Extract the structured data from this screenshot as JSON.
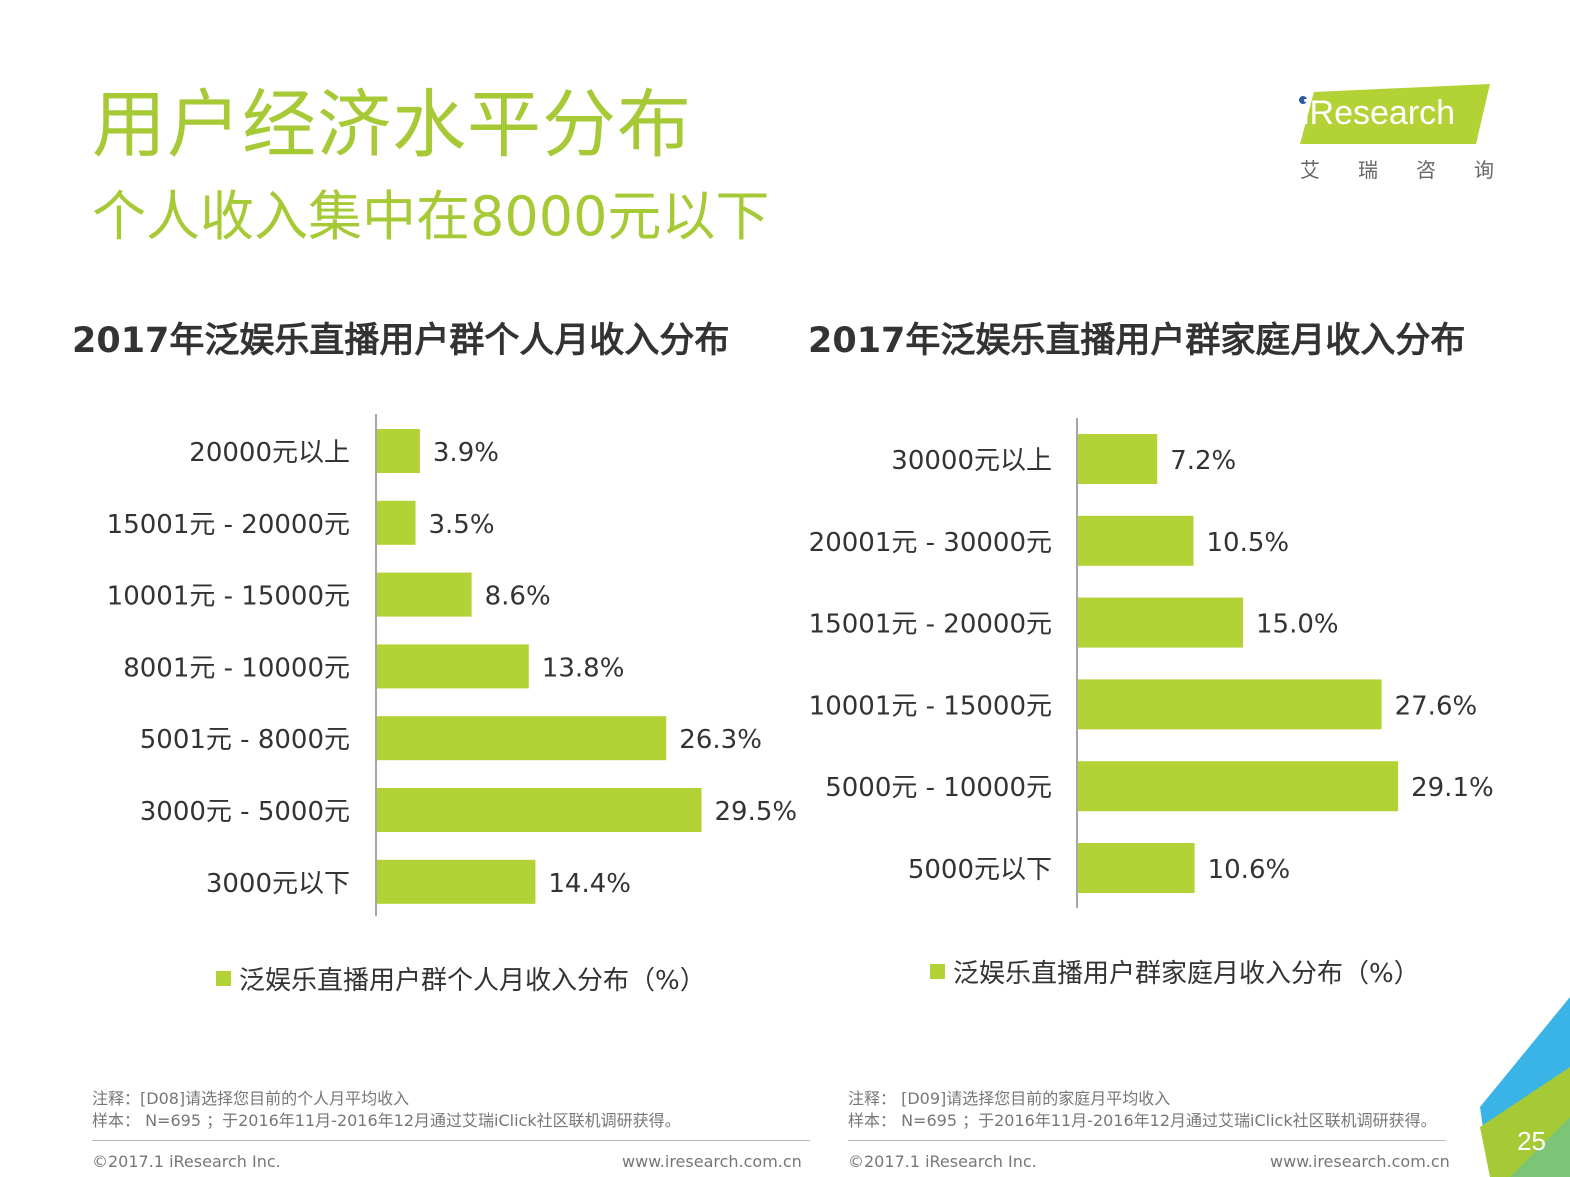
{
  "page": {
    "title": "用户经济水平分布",
    "subtitle": "个人收入集中在8000元以下",
    "page_number": "25"
  },
  "logo": {
    "brand": "iResearch",
    "brand_cn": "艾瑞咨询"
  },
  "colors": {
    "accent": "#a6c936",
    "bar": "#b2d235",
    "text": "#333333",
    "logo_band": "#b2d235",
    "deco_blue": "#3ab4e6",
    "deco_green": "#a6c936"
  },
  "chart_data": [
    {
      "type": "bar",
      "orientation": "horizontal",
      "title": "2017年泛娱乐直播用户群个人月收入分布",
      "categories": [
        "20000元以上",
        "15001元 - 20000元",
        "10001元 - 15000元",
        "8001元 - 10000元",
        "5001元 - 8000元",
        "3000元 - 5000元",
        "3000元以下"
      ],
      "values": [
        3.9,
        3.5,
        8.6,
        13.8,
        26.3,
        29.5,
        14.4
      ],
      "value_labels": [
        "3.9%",
        "3.5%",
        "8.6%",
        "13.8%",
        "26.3%",
        "29.5%",
        "14.4%"
      ],
      "legend": "泛娱乐直播用户群个人月收入分布（%）",
      "xlim": [
        0,
        30
      ]
    },
    {
      "type": "bar",
      "orientation": "horizontal",
      "title": "2017年泛娱乐直播用户群家庭月收入分布",
      "categories": [
        "30000元以上",
        "20001元 - 30000元",
        "15001元 - 20000元",
        "10001元 - 15000元",
        "5000元 - 10000元",
        "5000元以下"
      ],
      "values": [
        7.2,
        10.5,
        15.0,
        27.6,
        29.1,
        10.6
      ],
      "value_labels": [
        "7.2%",
        "10.5%",
        "15.0%",
        "27.6%",
        "29.1%",
        "10.6%"
      ],
      "legend": "泛娱乐直播用户群家庭月收入分布（%）",
      "xlim": [
        0,
        30
      ]
    }
  ],
  "notes": {
    "left_note": "注释：[D08]请选择您目前的个人月平均收入",
    "left_sample": "样本： N=695 ；于2016年11月-2016年12月通过艾瑞iClick社区联机调研获得。",
    "right_note": "注释： [D09]请选择您目前的家庭月平均收入",
    "right_sample": "样本： N=695 ；于2016年11月-2016年12月通过艾瑞iClick社区联机调研获得。"
  },
  "footer": {
    "copyright": "©2017.1 iResearch Inc.",
    "website": "www.iresearch.com.cn"
  }
}
